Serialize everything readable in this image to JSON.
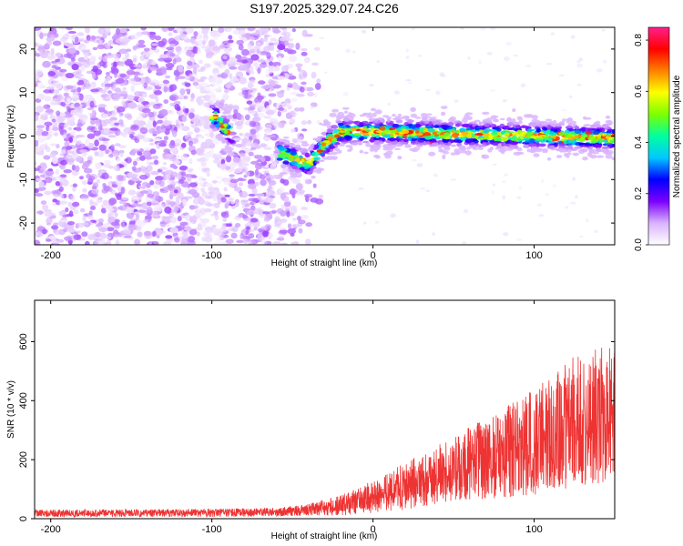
{
  "title": "S197.2025.329.07.24.C26",
  "chart_data": [
    {
      "type": "heatmap",
      "name": "spectrogram",
      "xlabel": "Height of straight line (km)",
      "ylabel": "Frequency (Hz)",
      "xlim": [
        -210,
        150
      ],
      "ylim": [
        -25,
        25
      ],
      "xticks": [
        {
          "value": -200,
          "label": "-200"
        },
        {
          "value": -100,
          "label": "-100"
        },
        {
          "value": 0,
          "label": "0"
        },
        {
          "value": 100,
          "label": "100"
        }
      ],
      "yticks": [
        {
          "value": -20,
          "label": "-20"
        },
        {
          "value": -10,
          "label": "-10"
        },
        {
          "value": 0,
          "label": "0"
        },
        {
          "value": 10,
          "label": "10"
        },
        {
          "value": 20,
          "label": "20"
        }
      ],
      "ridge": {
        "description_points": [
          {
            "x": -98,
            "f": 4.5
          },
          {
            "x": -90,
            "f": 1.0
          },
          {
            "x": -50,
            "f": -5.0
          },
          {
            "x": -40,
            "f": -6.5
          },
          {
            "x": -30,
            "f": -2.0
          },
          {
            "x": -20,
            "f": 1.0
          },
          {
            "x": 0,
            "f": 1.0
          },
          {
            "x": 150,
            "f": -0.5
          }
        ]
      },
      "colorbar": {
        "label": "Normalized spectral amplitude",
        "range": [
          0.0,
          0.85
        ],
        "ticks": [
          {
            "value": 0.0,
            "label": "0.0"
          },
          {
            "value": 0.2,
            "label": "0.2"
          },
          {
            "value": 0.4,
            "label": "0.4"
          },
          {
            "value": 0.6,
            "label": "0.6"
          },
          {
            "value": 0.8,
            "label": "0.8"
          }
        ],
        "colors": [
          "#ffffff",
          "#d9b3ff",
          "#7b00ff",
          "#0000ff",
          "#00c8ff",
          "#00ffa0",
          "#7dff00",
          "#ffff00",
          "#ff8000",
          "#ff0000",
          "#ff1f8c"
        ]
      }
    },
    {
      "type": "line",
      "name": "snr",
      "xlabel": "Height of straight line (km)",
      "ylabel": "SNR (10 * v/v)",
      "xlim": [
        -210,
        150
      ],
      "ylim": [
        0,
        740
      ],
      "xticks": [
        {
          "value": -200,
          "label": "-200"
        },
        {
          "value": -100,
          "label": "-100"
        },
        {
          "value": 0,
          "label": "0"
        },
        {
          "value": 100,
          "label": "100"
        }
      ],
      "yticks": [
        {
          "value": 0,
          "label": "0"
        },
        {
          "value": 200,
          "label": "200"
        },
        {
          "value": 400,
          "label": "400"
        },
        {
          "value": 600,
          "label": "600"
        }
      ],
      "color": "#ee3333",
      "envelope": [
        {
          "x": -210,
          "mean": 18,
          "spread": 12
        },
        {
          "x": -100,
          "mean": 20,
          "spread": 14
        },
        {
          "x": -60,
          "mean": 22,
          "spread": 14
        },
        {
          "x": -40,
          "mean": 30,
          "spread": 20
        },
        {
          "x": -20,
          "mean": 45,
          "spread": 35
        },
        {
          "x": 0,
          "mean": 75,
          "spread": 55
        },
        {
          "x": 20,
          "mean": 110,
          "spread": 80
        },
        {
          "x": 50,
          "mean": 170,
          "spread": 110
        },
        {
          "x": 80,
          "mean": 220,
          "spread": 150
        },
        {
          "x": 100,
          "mean": 260,
          "spread": 180
        },
        {
          "x": 125,
          "mean": 330,
          "spread": 230
        },
        {
          "x": 150,
          "mean": 360,
          "spread": 230
        }
      ]
    }
  ]
}
